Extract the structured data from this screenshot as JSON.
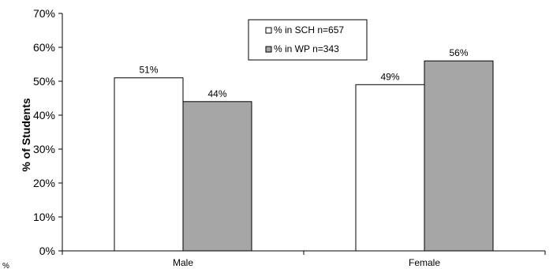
{
  "chart_data": {
    "type": "bar",
    "categories": [
      "Male",
      "Female"
    ],
    "series": [
      {
        "name": "% in SCH n=657",
        "values": [
          51,
          49
        ],
        "color": "#ffffff"
      },
      {
        "name": "% in WP n=343",
        "values": [
          44,
          56
        ],
        "color": "#a6a6a6"
      }
    ],
    "data_labels": [
      [
        "51%",
        "49%"
      ],
      [
        "44%",
        "56%"
      ]
    ],
    "ylabel": "% of Students",
    "xlabel": "",
    "ylim": [
      0,
      70
    ],
    "yticks": [
      0,
      10,
      20,
      30,
      40,
      50,
      60,
      70
    ],
    "ytick_labels": [
      "0%",
      "10%",
      "20%",
      "30%",
      "40%",
      "50%",
      "60%",
      "70%"
    ],
    "grid": false,
    "legend_position": "top-center",
    "stray_text": "%"
  }
}
